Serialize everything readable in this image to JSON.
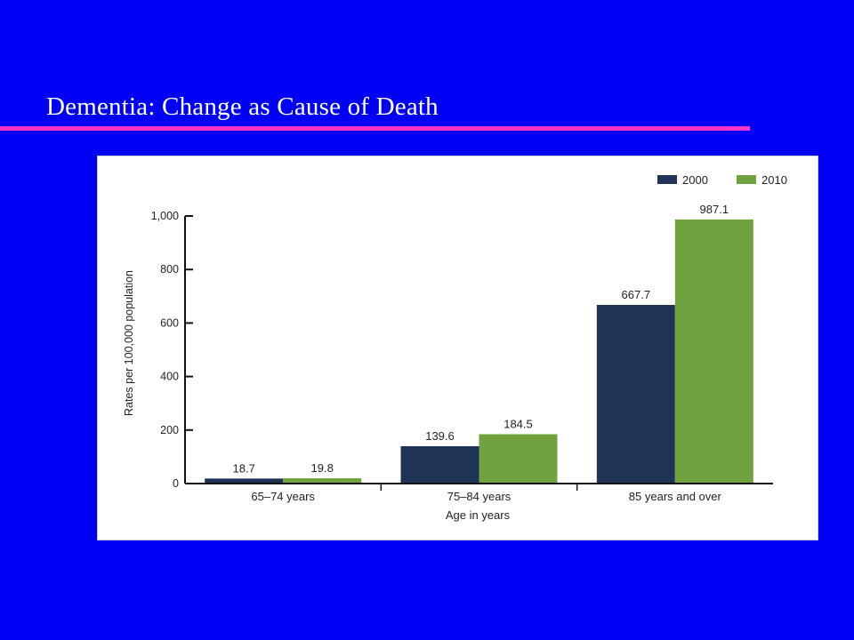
{
  "slide": {
    "title": "Dementia: Change as Cause of Death",
    "rule_color": "#ff33cc",
    "background_color": "#0000f5"
  },
  "chart_data": {
    "type": "bar",
    "categories": [
      "65–74 years",
      "75–84 years",
      "85 years and over"
    ],
    "series": [
      {
        "name": "2000",
        "color": "#1f3356",
        "values": [
          18.7,
          139.6,
          667.7
        ],
        "labels": [
          "18.7",
          "139.6",
          "667.7"
        ]
      },
      {
        "name": "2010",
        "color": "#70a340",
        "values": [
          19.8,
          184.5,
          987.1
        ],
        "labels": [
          "19.8",
          "184.5",
          "987.1"
        ]
      }
    ],
    "xlabel": "Age in years",
    "ylabel": "Rates per 100,000 population",
    "ylim": [
      0,
      1000
    ],
    "yticks": [
      0,
      200,
      400,
      600,
      800,
      1000
    ],
    "ytick_labels": [
      "0",
      "200",
      "400",
      "600",
      "800",
      "1,000"
    ],
    "legend_position": "top-right",
    "grid": false
  }
}
